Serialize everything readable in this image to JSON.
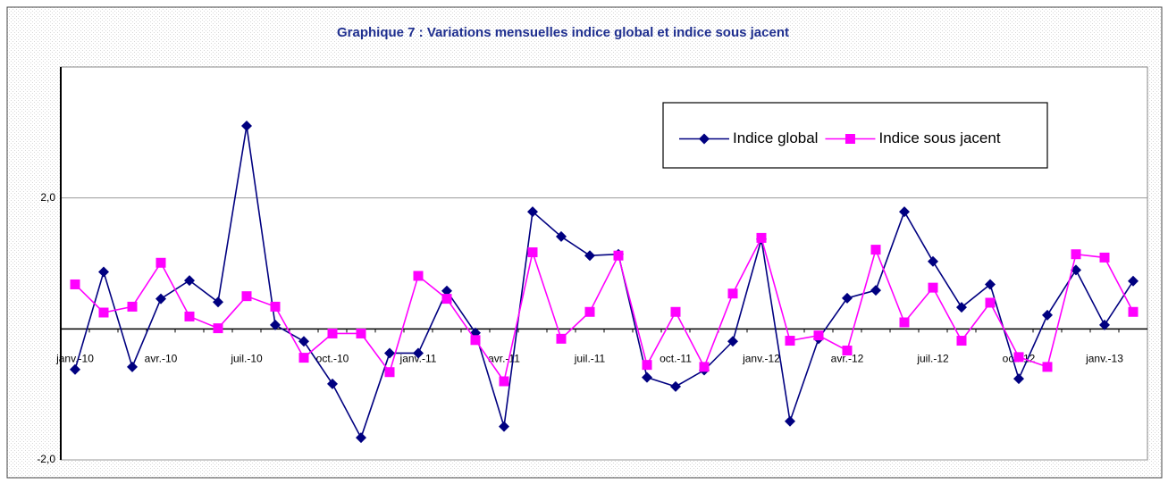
{
  "chart_data": {
    "type": "line",
    "title": "Graphique 7 : Variations mensuelles indice global et indice sous jacent",
    "categories": [
      "janv.-10",
      null,
      null,
      "avr.-10",
      null,
      null,
      "juil.-10",
      null,
      null,
      "oct.-10",
      null,
      null,
      "janv.-11",
      null,
      null,
      "avr.-11",
      null,
      null,
      "juil.-11",
      null,
      null,
      "oct.-11",
      null,
      null,
      "janv.-12",
      null,
      null,
      "avr.-12",
      null,
      null,
      "juil.-12",
      null,
      null,
      "oct.-12",
      null,
      null,
      "janv.-13",
      null
    ],
    "series": [
      {
        "name": "Indice global",
        "color": "#000080",
        "marker": "diamond",
        "values": [
          -0.62,
          0.87,
          -0.58,
          0.46,
          0.74,
          0.41,
          3.1,
          0.06,
          -0.19,
          -0.84,
          -1.66,
          -0.37,
          -0.37,
          0.58,
          -0.06,
          -1.49,
          1.79,
          1.41,
          1.12,
          1.14,
          -0.74,
          -0.88,
          -0.63,
          -0.19,
          1.37,
          -1.41,
          -0.15,
          0.47,
          0.59,
          1.79,
          1.03,
          0.33,
          0.68,
          -0.76,
          0.21,
          0.9,
          0.06,
          0.73
        ]
      },
      {
        "name": "Indice sous jacent",
        "color": "#ff00ff",
        "marker": "square",
        "values": [
          0.68,
          0.25,
          0.34,
          1.01,
          0.19,
          0.01,
          0.5,
          0.34,
          -0.44,
          -0.07,
          -0.07,
          -0.66,
          0.81,
          0.46,
          -0.17,
          -0.8,
          1.17,
          -0.15,
          0.26,
          1.12,
          -0.55,
          0.26,
          -0.58,
          0.54,
          1.39,
          -0.18,
          -0.1,
          -0.33,
          1.21,
          0.1,
          0.63,
          -0.18,
          0.4,
          -0.43,
          -0.58,
          1.14,
          1.09,
          0.26
        ]
      }
    ],
    "ylim": [
      -2,
      4
    ],
    "yticks": [
      {
        "value": -2,
        "label": "-2,0"
      },
      {
        "value": 2,
        "label": "2,0"
      }
    ],
    "grid": true,
    "legend": "upper right"
  }
}
